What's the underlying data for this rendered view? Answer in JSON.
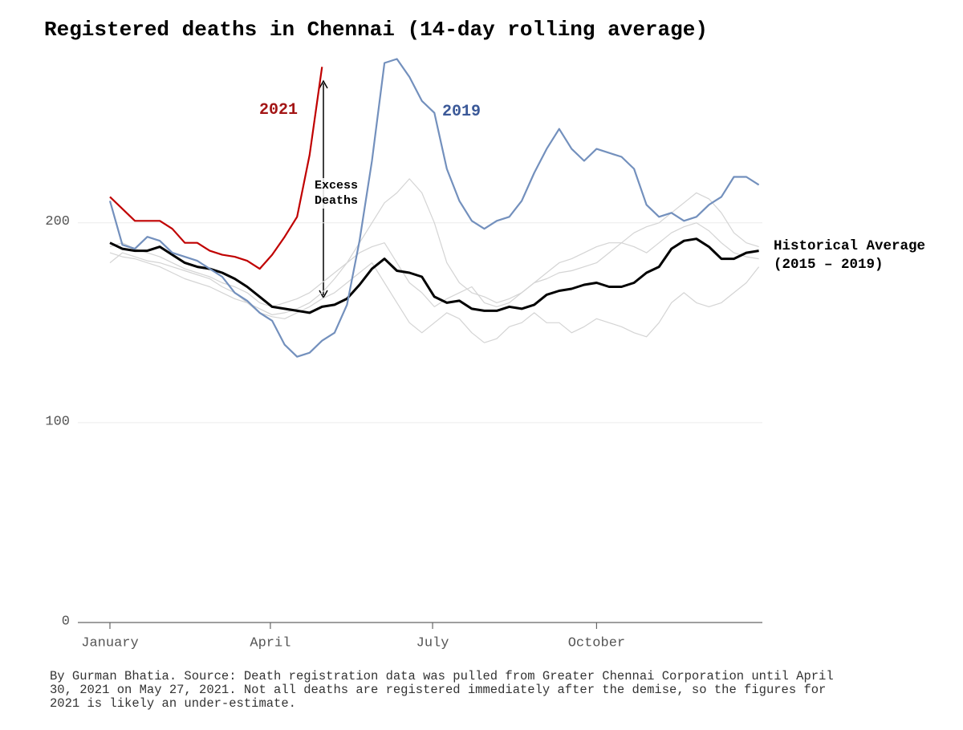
{
  "chart_data": {
    "type": "line",
    "title": "Registered deaths in Chennai (14-day rolling average)",
    "source": "By Gurman Bhatia. Source: Death registration data was pulled from Greater Chennai Corporation until April 30, 2021 on May 27, 2021. Not all deaths are registered immediately after the demise, so the figures for 2021 is likely an under-estimate.",
    "annotation": "Excess Deaths",
    "x": [
      1,
      8,
      15,
      22,
      29,
      36,
      43,
      50,
      57,
      64,
      71,
      78,
      85,
      92,
      99,
      106,
      113,
      120,
      127,
      134,
      141,
      148,
      155,
      162,
      169,
      176,
      183,
      190,
      197,
      204,
      211,
      218,
      225,
      232,
      239,
      246,
      253,
      260,
      267,
      274,
      281,
      288,
      295,
      302,
      309,
      316,
      323,
      330,
      337,
      344,
      351,
      358,
      365
    ],
    "xlim": [
      -17,
      367
    ],
    "xticks": [
      {
        "value": 1,
        "label": "January"
      },
      {
        "value": 91,
        "label": "April"
      },
      {
        "value": 182,
        "label": "July"
      },
      {
        "value": 274,
        "label": "October"
      }
    ],
    "ylim": [
      0,
      285
    ],
    "yticks": [
      0,
      100,
      200
    ],
    "grid": true,
    "series": [
      {
        "name": "2021",
        "color": "#c00000",
        "values": [
          213,
          207,
          201,
          201,
          201,
          197,
          190,
          190,
          186,
          184,
          183,
          181,
          177,
          184,
          193,
          203,
          234,
          278,
          null,
          null,
          null,
          null,
          null,
          null,
          null,
          null,
          null,
          null,
          null,
          null,
          null,
          null,
          null,
          null,
          null,
          null,
          null,
          null,
          null,
          null,
          null,
          null,
          null,
          null,
          null,
          null,
          null,
          null,
          null,
          null,
          null,
          null,
          null
        ]
      },
      {
        "name": "2019",
        "color": "#7390bd",
        "values": [
          211,
          189,
          187,
          193,
          191,
          185,
          183,
          181,
          177,
          173,
          165,
          161,
          155,
          151,
          139,
          133,
          135,
          141,
          145,
          159,
          191,
          231,
          280,
          282,
          273,
          261,
          255,
          227,
          211,
          201,
          197,
          201,
          203,
          211,
          225,
          237,
          247,
          237,
          231,
          237,
          235,
          233,
          227,
          209,
          203,
          205,
          201,
          203,
          209,
          213,
          223,
          223,
          219
        ]
      },
      {
        "name": "Historical Average (2015 – 2019)",
        "color": "#000000",
        "values": [
          190,
          187,
          186,
          186,
          188,
          184,
          180,
          178,
          177,
          175,
          172,
          168,
          163,
          158,
          157,
          156,
          155,
          158,
          159,
          162,
          169,
          177,
          182,
          176,
          175,
          173,
          163,
          160,
          161,
          157,
          156,
          156,
          158,
          157,
          159,
          164,
          166,
          167,
          169,
          170,
          168,
          168,
          170,
          175,
          178,
          187,
          191,
          192,
          188,
          182,
          182,
          185,
          186
        ]
      },
      {
        "color": "#d4d4d4",
        "values": [
          185,
          183,
          182,
          180,
          178,
          175,
          172,
          170,
          168,
          165,
          162,
          160,
          157,
          154,
          155,
          157,
          160,
          165,
          172,
          180,
          190,
          200,
          210,
          215,
          222,
          215,
          200,
          180,
          170,
          165,
          163,
          160,
          162,
          165,
          170,
          172,
          175,
          176,
          178,
          180,
          185,
          190,
          195,
          198,
          200,
          205,
          210,
          215,
          212,
          205,
          195,
          190,
          188
        ]
      },
      {
        "color": "#d4d4d4",
        "values": [
          180,
          185,
          183,
          181,
          180,
          178,
          176,
          174,
          172,
          168,
          165,
          160,
          155,
          153,
          152,
          155,
          158,
          162,
          165,
          170,
          175,
          180,
          170,
          160,
          150,
          145,
          150,
          155,
          152,
          145,
          140,
          142,
          148,
          150,
          155,
          150,
          150,
          145,
          148,
          152,
          150,
          148,
          145,
          143,
          150,
          160,
          165,
          160,
          158,
          160,
          165,
          170,
          178
        ]
      },
      {
        "color": "#d4d4d4",
        "values": [
          188,
          190,
          187,
          185,
          183,
          180,
          177,
          175,
          173,
          170,
          168,
          165,
          160,
          158,
          160,
          162,
          165,
          170,
          175,
          180,
          185,
          188,
          190,
          180,
          170,
          165,
          158,
          162,
          165,
          168,
          160,
          158,
          160,
          165,
          170,
          175,
          180,
          182,
          185,
          188,
          190,
          190,
          188,
          185,
          190,
          195,
          198,
          200,
          196,
          190,
          185,
          183,
          182
        ]
      }
    ]
  }
}
